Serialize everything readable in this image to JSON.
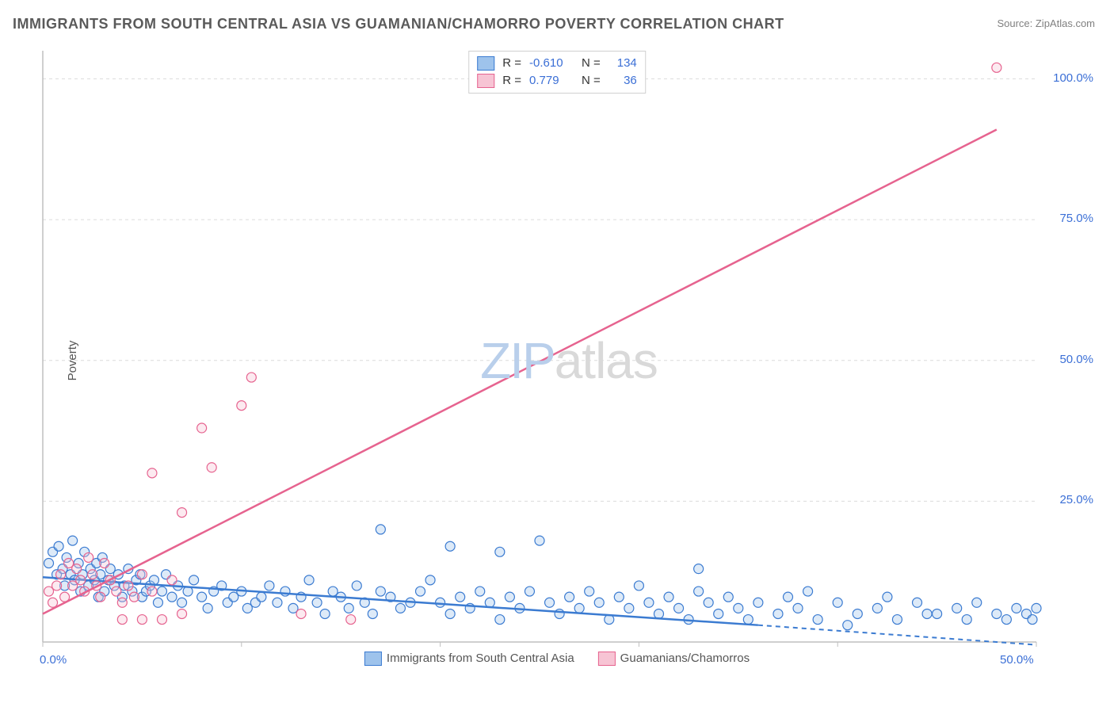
{
  "title": "IMMIGRANTS FROM SOUTH CENTRAL ASIA VS GUAMANIAN/CHAMORRO POVERTY CORRELATION CHART",
  "source_label": "Source: ZipAtlas.com",
  "ylabel": "Poverty",
  "watermark": {
    "zip": "ZIP",
    "atlas": "atlas"
  },
  "chart": {
    "type": "scatter-with-regression",
    "background_color": "#ffffff",
    "grid_color": "#dcdcdc",
    "axis_color": "#bfbfbf",
    "xlim": [
      0,
      50
    ],
    "ylim": [
      0,
      105
    ],
    "x_ticks": [
      0,
      10,
      20,
      30,
      40,
      50
    ],
    "x_tick_labels": [
      "0.0%",
      "",
      "",
      "",
      "",
      "50.0%"
    ],
    "x_tick_label_color": "#3b6fd6",
    "y_ticks": [
      25,
      50,
      75,
      100
    ],
    "y_tick_labels": [
      "25.0%",
      "50.0%",
      "75.0%",
      "100.0%"
    ],
    "y_tick_label_color": "#3b6fd6",
    "marker_radius": 6,
    "marker_stroke_width": 1.2,
    "marker_fill_opacity": 0.35,
    "series": [
      {
        "id": "sca",
        "label": "Immigrants from South Central Asia",
        "color_stroke": "#3b7bd1",
        "color_fill": "#9ec3ec",
        "R": -0.61,
        "N": 134,
        "regression": {
          "x1": 0,
          "y1": 11.5,
          "x2": 36,
          "y2": 3.0,
          "dash_after_x": 36,
          "x_end": 50,
          "y_end": -0.5
        },
        "points": [
          [
            0.3,
            14
          ],
          [
            0.5,
            16
          ],
          [
            0.7,
            12
          ],
          [
            0.8,
            17
          ],
          [
            1.0,
            13
          ],
          [
            1.1,
            10
          ],
          [
            1.2,
            15
          ],
          [
            1.4,
            12
          ],
          [
            1.5,
            18
          ],
          [
            1.6,
            11
          ],
          [
            1.8,
            14
          ],
          [
            1.9,
            9
          ],
          [
            2.0,
            12
          ],
          [
            2.1,
            16
          ],
          [
            2.3,
            10
          ],
          [
            2.4,
            13
          ],
          [
            2.6,
            11
          ],
          [
            2.7,
            14
          ],
          [
            2.8,
            8
          ],
          [
            2.9,
            12
          ],
          [
            3.0,
            15
          ],
          [
            3.1,
            9
          ],
          [
            3.3,
            11
          ],
          [
            3.4,
            13
          ],
          [
            3.6,
            10
          ],
          [
            3.8,
            12
          ],
          [
            4.0,
            8
          ],
          [
            4.1,
            10
          ],
          [
            4.3,
            13
          ],
          [
            4.5,
            9
          ],
          [
            4.7,
            11
          ],
          [
            4.9,
            12
          ],
          [
            5.0,
            8
          ],
          [
            5.2,
            9
          ],
          [
            5.4,
            10
          ],
          [
            5.6,
            11
          ],
          [
            5.8,
            7
          ],
          [
            6.0,
            9
          ],
          [
            6.2,
            12
          ],
          [
            6.5,
            8
          ],
          [
            6.8,
            10
          ],
          [
            7.0,
            7
          ],
          [
            7.3,
            9
          ],
          [
            7.6,
            11
          ],
          [
            8.0,
            8
          ],
          [
            8.3,
            6
          ],
          [
            8.6,
            9
          ],
          [
            9.0,
            10
          ],
          [
            9.3,
            7
          ],
          [
            9.6,
            8
          ],
          [
            10.0,
            9
          ],
          [
            10.3,
            6
          ],
          [
            10.7,
            7
          ],
          [
            11.0,
            8
          ],
          [
            11.4,
            10
          ],
          [
            11.8,
            7
          ],
          [
            12.2,
            9
          ],
          [
            12.6,
            6
          ],
          [
            13.0,
            8
          ],
          [
            13.4,
            11
          ],
          [
            13.8,
            7
          ],
          [
            14.2,
            5
          ],
          [
            14.6,
            9
          ],
          [
            15.0,
            8
          ],
          [
            15.4,
            6
          ],
          [
            15.8,
            10
          ],
          [
            16.2,
            7
          ],
          [
            16.6,
            5
          ],
          [
            17.0,
            9
          ],
          [
            17.0,
            20
          ],
          [
            17.5,
            8
          ],
          [
            18.0,
            6
          ],
          [
            18.5,
            7
          ],
          [
            19.0,
            9
          ],
          [
            19.5,
            11
          ],
          [
            20.0,
            7
          ],
          [
            20.5,
            5
          ],
          [
            20.5,
            17
          ],
          [
            21.0,
            8
          ],
          [
            21.5,
            6
          ],
          [
            22.0,
            9
          ],
          [
            22.5,
            7
          ],
          [
            23.0,
            4
          ],
          [
            23.0,
            16
          ],
          [
            23.5,
            8
          ],
          [
            24.0,
            6
          ],
          [
            24.5,
            9
          ],
          [
            25.0,
            18
          ],
          [
            25.5,
            7
          ],
          [
            26.0,
            5
          ],
          [
            26.5,
            8
          ],
          [
            27.0,
            6
          ],
          [
            27.5,
            9
          ],
          [
            28.0,
            7
          ],
          [
            28.5,
            4
          ],
          [
            29.0,
            8
          ],
          [
            29.5,
            6
          ],
          [
            30.0,
            10
          ],
          [
            30.5,
            7
          ],
          [
            31.0,
            5
          ],
          [
            31.5,
            8
          ],
          [
            32.0,
            6
          ],
          [
            32.5,
            4
          ],
          [
            33.0,
            9
          ],
          [
            33.0,
            13
          ],
          [
            33.5,
            7
          ],
          [
            34.0,
            5
          ],
          [
            34.5,
            8
          ],
          [
            35.0,
            6
          ],
          [
            35.5,
            4
          ],
          [
            36.0,
            7
          ],
          [
            37.0,
            5
          ],
          [
            37.5,
            8
          ],
          [
            38.0,
            6
          ],
          [
            39.0,
            4
          ],
          [
            40.0,
            7
          ],
          [
            41.0,
            5
          ],
          [
            42.0,
            6
          ],
          [
            43.0,
            4
          ],
          [
            44.0,
            7
          ],
          [
            45.0,
            5
          ],
          [
            46.0,
            6
          ],
          [
            46.5,
            4
          ],
          [
            47.0,
            7
          ],
          [
            48.0,
            5
          ],
          [
            48.5,
            4
          ],
          [
            49.0,
            6
          ],
          [
            49.5,
            5
          ],
          [
            49.8,
            4
          ],
          [
            50.0,
            6
          ],
          [
            38.5,
            9
          ],
          [
            40.5,
            3
          ],
          [
            42.5,
            8
          ],
          [
            44.5,
            5
          ]
        ]
      },
      {
        "id": "gc",
        "label": "Guamanians/Chamorros",
        "color_stroke": "#e6638f",
        "color_fill": "#f7c4d4",
        "R": 0.779,
        "N": 36,
        "regression": {
          "x1": 0,
          "y1": 5.0,
          "x2": 48,
          "y2": 91.0,
          "dash_after_x": 48,
          "x_end": 48,
          "y_end": 91.0
        },
        "points": [
          [
            0.3,
            9
          ],
          [
            0.5,
            7
          ],
          [
            0.7,
            10
          ],
          [
            0.9,
            12
          ],
          [
            1.1,
            8
          ],
          [
            1.3,
            14
          ],
          [
            1.5,
            10
          ],
          [
            1.7,
            13
          ],
          [
            1.9,
            11
          ],
          [
            2.1,
            9
          ],
          [
            2.3,
            15
          ],
          [
            2.5,
            12
          ],
          [
            2.7,
            10
          ],
          [
            2.9,
            8
          ],
          [
            3.1,
            14
          ],
          [
            3.4,
            11
          ],
          [
            3.7,
            9
          ],
          [
            4.0,
            7
          ],
          [
            4.0,
            4
          ],
          [
            4.3,
            10
          ],
          [
            4.6,
            8
          ],
          [
            5.0,
            12
          ],
          [
            5.0,
            4
          ],
          [
            5.5,
            9
          ],
          [
            5.5,
            30
          ],
          [
            6.0,
            4
          ],
          [
            6.5,
            11
          ],
          [
            7.0,
            23
          ],
          [
            7.0,
            5
          ],
          [
            8.0,
            38
          ],
          [
            8.5,
            31
          ],
          [
            10.0,
            42
          ],
          [
            10.5,
            47
          ],
          [
            13.0,
            5
          ],
          [
            15.5,
            4
          ],
          [
            48.0,
            102
          ]
        ]
      }
    ]
  },
  "legend_top": {
    "rows": [
      {
        "swatch_fill": "#9ec3ec",
        "swatch_stroke": "#3b7bd1",
        "r_label": "R =",
        "r_value": "-0.610",
        "n_label": "N =",
        "n_value": "134"
      },
      {
        "swatch_fill": "#f7c4d4",
        "swatch_stroke": "#e6638f",
        "r_label": "R =",
        "r_value": " 0.779",
        "n_label": "N =",
        "n_value": " 36"
      }
    ]
  },
  "legend_bottom": {
    "items": [
      {
        "swatch_fill": "#9ec3ec",
        "swatch_stroke": "#3b7bd1",
        "label": "Immigrants from South Central Asia"
      },
      {
        "swatch_fill": "#f7c4d4",
        "swatch_stroke": "#e6638f",
        "label": "Guamanians/Chamorros"
      }
    ]
  }
}
